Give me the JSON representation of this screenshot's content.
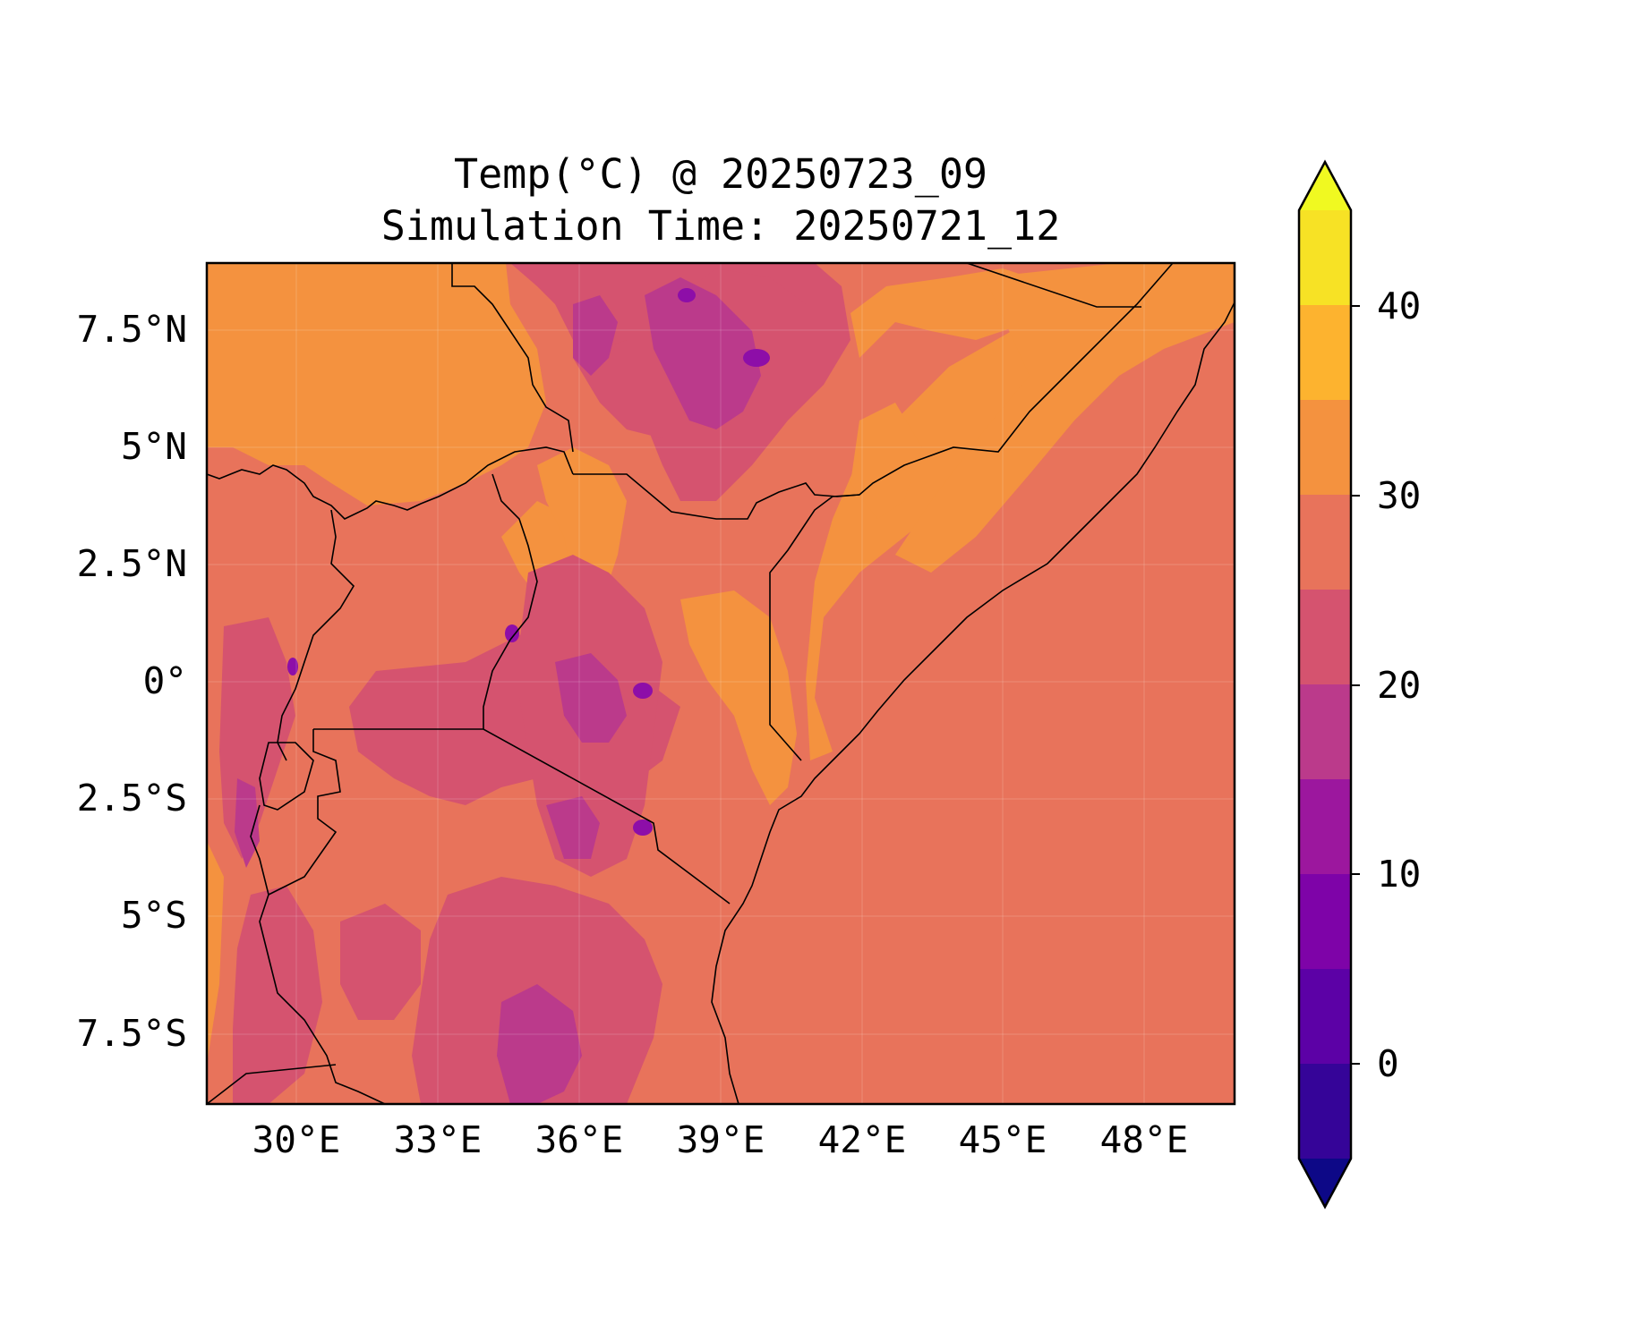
{
  "figure": {
    "title_line1": "Temp(°C) @ 20250723_09",
    "title_line2": "Simulation Time: 20250721_12"
  },
  "map": {
    "x_ticks": [
      "30°E",
      "33°E",
      "36°E",
      "39°E",
      "42°E",
      "45°E",
      "48°E"
    ],
    "y_ticks": [
      "7.5°N",
      "5°N",
      "2.5°N",
      "0°",
      "2.5°S",
      "5°S",
      "7.5°S"
    ],
    "gridlines": true,
    "colors": {
      "base": "#e8735b",
      "warm": "#f4923f",
      "cool": "#d5536f",
      "cooler": "#bb3a8b",
      "coldest": "#8d0ea8",
      "border": "#000000"
    }
  },
  "colorbar": {
    "ticks": [
      "40",
      "30",
      "20",
      "10",
      "0"
    ],
    "extend": "both",
    "colors": [
      "#f0f921",
      "#f7e225",
      "#fdb32f",
      "#f4923f",
      "#e8735b",
      "#d5536f",
      "#bb3a8b",
      "#9c179e",
      "#7e03a8",
      "#5c01a6",
      "#350498",
      "#0d0887"
    ]
  }
}
